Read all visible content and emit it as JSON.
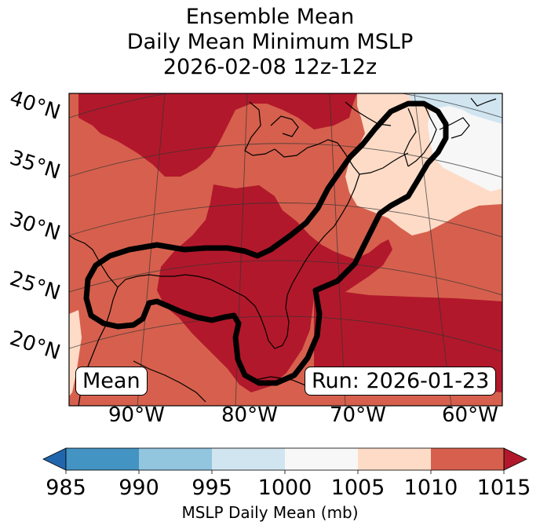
{
  "title": {
    "line1": "Ensemble Mean",
    "line2": "Daily Mean Minimum MSLP",
    "line3": "2026-02-08 12z-12z"
  },
  "map": {
    "lat_labels": [
      "40°N",
      "35°N",
      "30°N",
      "25°N",
      "20°N"
    ],
    "lon_labels": [
      "90°W",
      "80°W",
      "70°W",
      "60°W"
    ],
    "mean_label": "Mean",
    "run_label": "Run: 2026-01-23"
  },
  "colorbar": {
    "ticks": [
      "985",
      "990",
      "995",
      "1000",
      "1005",
      "1010",
      "1015"
    ],
    "label": "MSLP Daily Mean (mb)",
    "colors": [
      "#2166ac",
      "#4393c3",
      "#92c5de",
      "#d1e5f0",
      "#f7f7f7",
      "#fddbc7",
      "#d6604d",
      "#b2182b"
    ]
  },
  "colors": {
    "dark_red": "#b2182b",
    "red": "#d6604d",
    "peach": "#fddbc7",
    "white": "#f7f7f7",
    "light_blue": "#d1e5f0",
    "outline": "#000000"
  }
}
